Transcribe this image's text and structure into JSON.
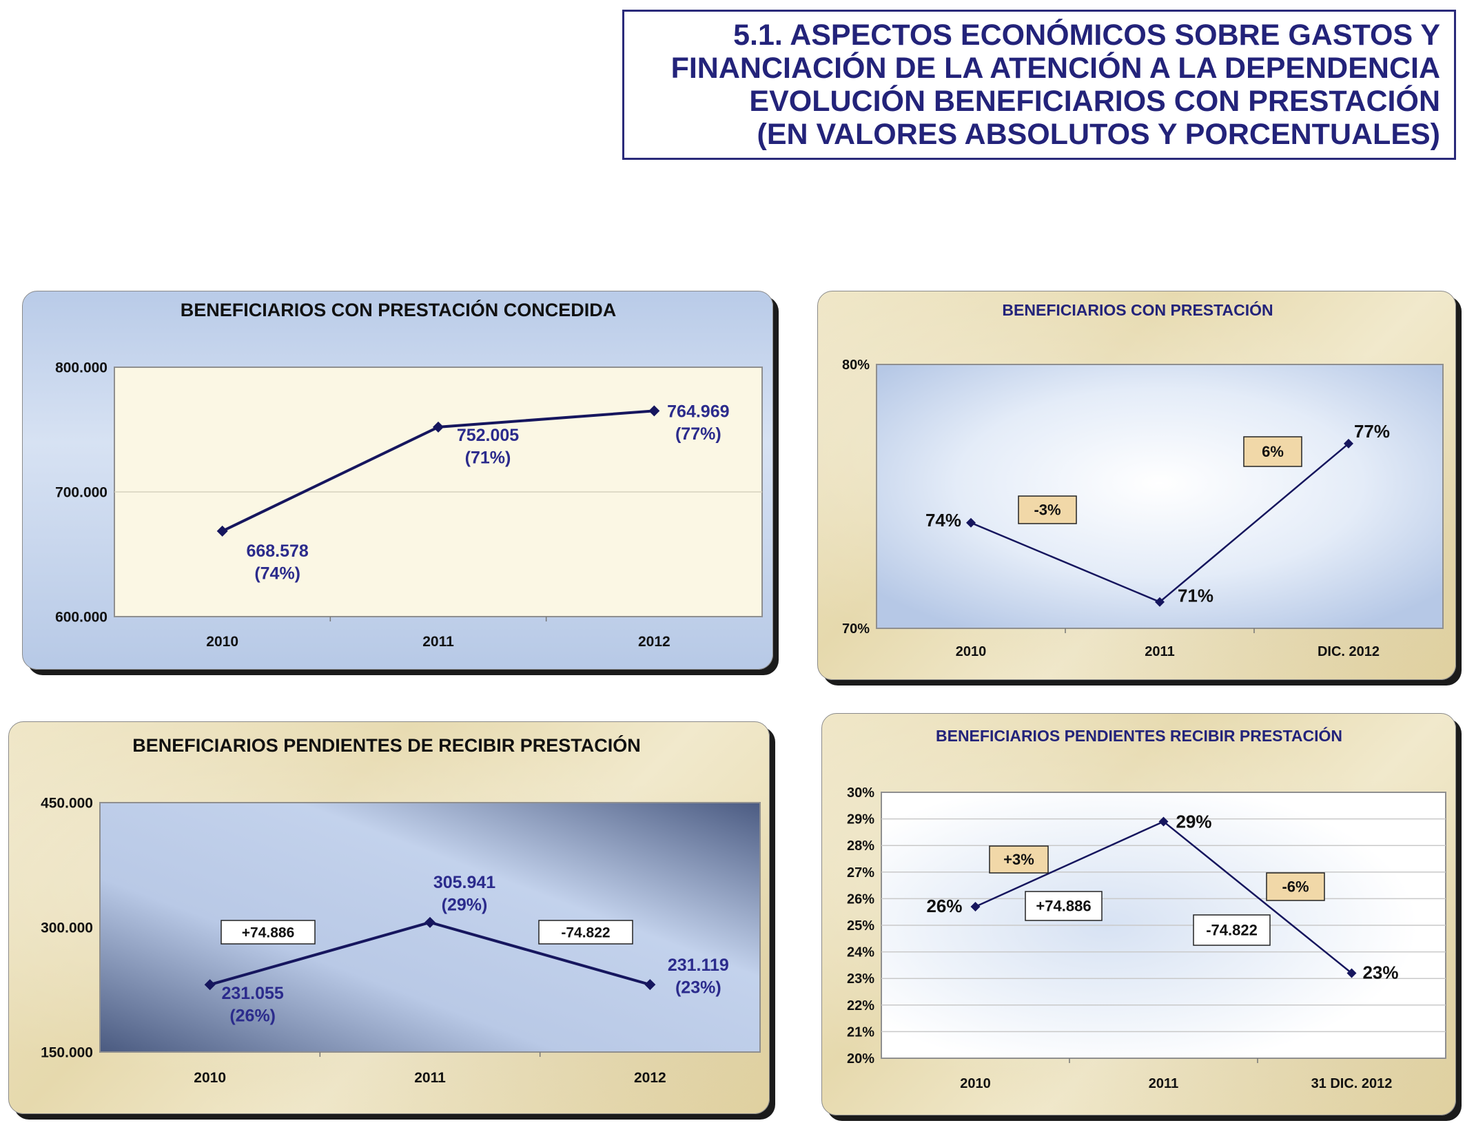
{
  "header": {
    "lines": [
      "5.1. ASPECTOS ECONÓMICOS SOBRE GASTOS Y",
      "FINANCIACIÓN DE LA ATENCIÓN A LA DEPENDENCIA",
      "EVOLUCIÓN BENEFICIARIOS CON PRESTACIÓN",
      "(EN VALORES ABSOLUTOS Y PORCENTUALES)"
    ]
  },
  "colors": {
    "line": "#16165e",
    "label": "#2b2b8c",
    "title_box_border": "#2a2a7a",
    "change_box": "#f1d8a8"
  },
  "chart_data": [
    {
      "id": "c1",
      "type": "line",
      "title": "BENEFICIARIOS CON PRESTACIÓN CONCEDIDA",
      "categories": [
        "2010",
        "2011",
        "2012"
      ],
      "values": [
        668578,
        752005,
        764969
      ],
      "ylim": [
        600000,
        800000
      ],
      "yticks": [
        "600.000",
        "700.000",
        "800.000"
      ],
      "data_labels": [
        [
          "668.578",
          "(74%)"
        ],
        [
          "752.005",
          "(71%)"
        ],
        [
          "764.969",
          "(77%)"
        ]
      ],
      "annotations": [],
      "grid": true,
      "legend": "none"
    },
    {
      "id": "c2",
      "type": "line",
      "title": "BENEFICIARIOS CON PRESTACIÓN",
      "categories": [
        "2010",
        "2011",
        "DIC. 2012"
      ],
      "values": [
        74,
        71,
        77
      ],
      "ylim": [
        70,
        80
      ],
      "yticks": [
        "70%",
        "80%"
      ],
      "data_labels": [
        [
          "74%"
        ],
        [
          "71%"
        ],
        [
          "77%"
        ]
      ],
      "annotations": [
        "-3%",
        "6%"
      ],
      "grid": false,
      "legend": "none"
    },
    {
      "id": "c3",
      "type": "line",
      "title": "BENEFICIARIOS PENDIENTES DE RECIBIR PRESTACIÓN",
      "categories": [
        "2010",
        "2011",
        "2012"
      ],
      "values": [
        231055,
        305941,
        231119
      ],
      "ylim": [
        150000,
        450000
      ],
      "yticks": [
        "150.000",
        "300.000",
        "450.000"
      ],
      "data_labels": [
        [
          "231.055",
          "(26%)"
        ],
        [
          "305.941",
          "(29%)"
        ],
        [
          "231.119",
          "(23%)"
        ]
      ],
      "annotations": [
        "+74.886",
        "-74.822"
      ],
      "grid": false,
      "legend": "none"
    },
    {
      "id": "c4",
      "type": "line",
      "title": "BENEFICIARIOS PENDIENTES RECIBIR PRESTACIÓN",
      "categories": [
        "2010",
        "2011",
        "31 DIC. 2012"
      ],
      "values": [
        25.7,
        28.9,
        23.2
      ],
      "ylim": [
        20,
        30
      ],
      "yticks": [
        "20%",
        "21%",
        "22%",
        "23%",
        "24%",
        "25%",
        "26%",
        "27%",
        "28%",
        "29%",
        "30%"
      ],
      "data_labels": [
        [
          "26%"
        ],
        [
          "29%"
        ],
        [
          "23%"
        ]
      ],
      "annotations": [
        "+3%",
        "+74.886",
        "-6%",
        "-74.822"
      ],
      "grid": true,
      "legend": "none"
    }
  ]
}
